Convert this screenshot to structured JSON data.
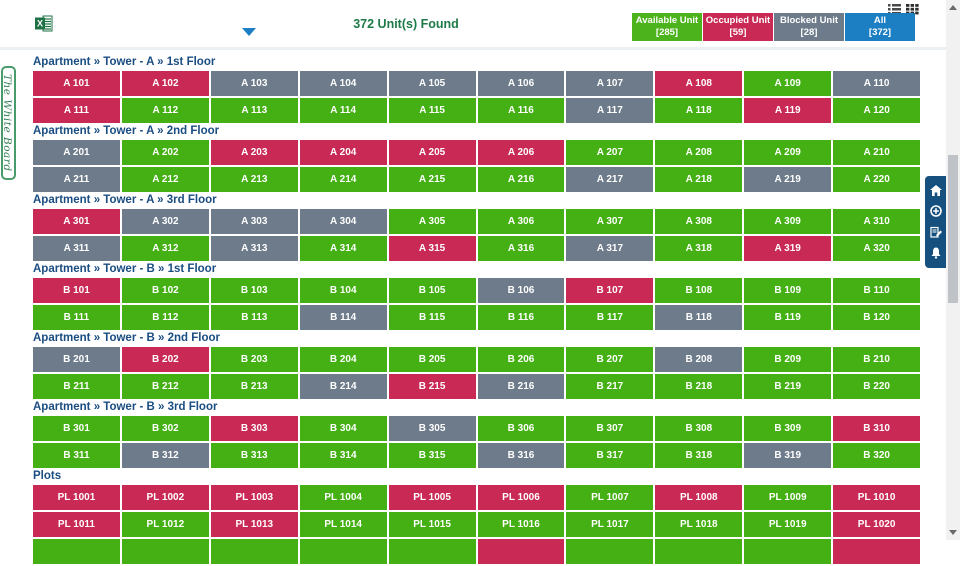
{
  "header": {
    "title": "372 Unit(s) Found",
    "filters": [
      {
        "id": "available",
        "label": "Available Unit",
        "count": "[285]",
        "color": "#4cb31c"
      },
      {
        "id": "occupied",
        "label": "Occupied Unit",
        "count": "[59]",
        "color": "#c92a55"
      },
      {
        "id": "blocked",
        "label": "Blocked Unit",
        "count": "[28]",
        "color": "#6d7b8b"
      },
      {
        "id": "all",
        "label": "All",
        "count": "[372]",
        "color": "#1c7fc3",
        "selected": true
      }
    ]
  },
  "side_tab": {
    "label": "The White Board"
  },
  "toolbar": {
    "icons": [
      "home-icon",
      "add-circle-icon",
      "edit-notes-icon",
      "bell-icon"
    ]
  },
  "status_colors": {
    "available": "#44b013",
    "occupied": "#c92a55",
    "blocked": "#6d7b8b"
  },
  "sections": [
    {
      "title": "Apartment » Tower - A » 1st Floor",
      "rows": [
        [
          {
            "label": "A 101",
            "status": "occupied"
          },
          {
            "label": "A 102",
            "status": "occupied"
          },
          {
            "label": "A 103",
            "status": "blocked"
          },
          {
            "label": "A 104",
            "status": "blocked"
          },
          {
            "label": "A 105",
            "status": "blocked"
          },
          {
            "label": "A 106",
            "status": "blocked"
          },
          {
            "label": "A 107",
            "status": "blocked"
          },
          {
            "label": "A 108",
            "status": "occupied"
          },
          {
            "label": "A 109",
            "status": "available"
          },
          {
            "label": "A 110",
            "status": "blocked"
          }
        ],
        [
          {
            "label": "A 111",
            "status": "occupied"
          },
          {
            "label": "A 112",
            "status": "available"
          },
          {
            "label": "A 113",
            "status": "available"
          },
          {
            "label": "A 114",
            "status": "available"
          },
          {
            "label": "A 115",
            "status": "available"
          },
          {
            "label": "A 116",
            "status": "available"
          },
          {
            "label": "A 117",
            "status": "blocked"
          },
          {
            "label": "A 118",
            "status": "available"
          },
          {
            "label": "A 119",
            "status": "occupied"
          },
          {
            "label": "A 120",
            "status": "available"
          }
        ]
      ]
    },
    {
      "title": "Apartment » Tower - A » 2nd Floor",
      "rows": [
        [
          {
            "label": "A 201",
            "status": "blocked"
          },
          {
            "label": "A 202",
            "status": "available"
          },
          {
            "label": "A 203",
            "status": "occupied"
          },
          {
            "label": "A 204",
            "status": "occupied"
          },
          {
            "label": "A 205",
            "status": "occupied"
          },
          {
            "label": "A 206",
            "status": "occupied"
          },
          {
            "label": "A 207",
            "status": "available"
          },
          {
            "label": "A 208",
            "status": "available"
          },
          {
            "label": "A 209",
            "status": "available"
          },
          {
            "label": "A 210",
            "status": "available"
          }
        ],
        [
          {
            "label": "A 211",
            "status": "blocked"
          },
          {
            "label": "A 212",
            "status": "available"
          },
          {
            "label": "A 213",
            "status": "available"
          },
          {
            "label": "A 214",
            "status": "available"
          },
          {
            "label": "A 215",
            "status": "available"
          },
          {
            "label": "A 216",
            "status": "available"
          },
          {
            "label": "A 217",
            "status": "blocked"
          },
          {
            "label": "A 218",
            "status": "available"
          },
          {
            "label": "A 219",
            "status": "blocked"
          },
          {
            "label": "A 220",
            "status": "available"
          }
        ]
      ]
    },
    {
      "title": "Apartment » Tower - A » 3rd Floor",
      "rows": [
        [
          {
            "label": "A 301",
            "status": "occupied"
          },
          {
            "label": "A 302",
            "status": "blocked"
          },
          {
            "label": "A 303",
            "status": "blocked"
          },
          {
            "label": "A 304",
            "status": "blocked"
          },
          {
            "label": "A 305",
            "status": "available"
          },
          {
            "label": "A 306",
            "status": "available"
          },
          {
            "label": "A 307",
            "status": "available"
          },
          {
            "label": "A 308",
            "status": "available"
          },
          {
            "label": "A 309",
            "status": "available"
          },
          {
            "label": "A 310",
            "status": "available"
          }
        ],
        [
          {
            "label": "A 311",
            "status": "blocked"
          },
          {
            "label": "A 312",
            "status": "available"
          },
          {
            "label": "A 313",
            "status": "blocked"
          },
          {
            "label": "A 314",
            "status": "available"
          },
          {
            "label": "A 315",
            "status": "occupied"
          },
          {
            "label": "A 316",
            "status": "available"
          },
          {
            "label": "A 317",
            "status": "blocked"
          },
          {
            "label": "A 318",
            "status": "available"
          },
          {
            "label": "A 319",
            "status": "occupied"
          },
          {
            "label": "A 320",
            "status": "available"
          }
        ]
      ]
    },
    {
      "title": "Apartment » Tower - B » 1st Floor",
      "rows": [
        [
          {
            "label": "B 101",
            "status": "occupied"
          },
          {
            "label": "B 102",
            "status": "available"
          },
          {
            "label": "B 103",
            "status": "available"
          },
          {
            "label": "B 104",
            "status": "available"
          },
          {
            "label": "B 105",
            "status": "available"
          },
          {
            "label": "B 106",
            "status": "blocked"
          },
          {
            "label": "B 107",
            "status": "occupied"
          },
          {
            "label": "B 108",
            "status": "available"
          },
          {
            "label": "B 109",
            "status": "available"
          },
          {
            "label": "B 110",
            "status": "available"
          }
        ],
        [
          {
            "label": "B 111",
            "status": "available"
          },
          {
            "label": "B 112",
            "status": "available"
          },
          {
            "label": "B 113",
            "status": "available"
          },
          {
            "label": "B 114",
            "status": "blocked"
          },
          {
            "label": "B 115",
            "status": "available"
          },
          {
            "label": "B 116",
            "status": "available"
          },
          {
            "label": "B 117",
            "status": "available"
          },
          {
            "label": "B 118",
            "status": "blocked"
          },
          {
            "label": "B 119",
            "status": "available"
          },
          {
            "label": "B 120",
            "status": "available"
          }
        ]
      ]
    },
    {
      "title": "Apartment » Tower - B » 2nd Floor",
      "rows": [
        [
          {
            "label": "B 201",
            "status": "blocked"
          },
          {
            "label": "B 202",
            "status": "occupied"
          },
          {
            "label": "B 203",
            "status": "available"
          },
          {
            "label": "B 204",
            "status": "available"
          },
          {
            "label": "B 205",
            "status": "available"
          },
          {
            "label": "B 206",
            "status": "available"
          },
          {
            "label": "B 207",
            "status": "available"
          },
          {
            "label": "B 208",
            "status": "blocked"
          },
          {
            "label": "B 209",
            "status": "available"
          },
          {
            "label": "B 210",
            "status": "available"
          }
        ],
        [
          {
            "label": "B 211",
            "status": "available"
          },
          {
            "label": "B 212",
            "status": "available"
          },
          {
            "label": "B 213",
            "status": "available"
          },
          {
            "label": "B 214",
            "status": "blocked"
          },
          {
            "label": "B 215",
            "status": "occupied"
          },
          {
            "label": "B 216",
            "status": "blocked"
          },
          {
            "label": "B 217",
            "status": "available"
          },
          {
            "label": "B 218",
            "status": "available"
          },
          {
            "label": "B 219",
            "status": "available"
          },
          {
            "label": "B 220",
            "status": "available"
          }
        ]
      ]
    },
    {
      "title": "Apartment » Tower - B » 3rd Floor",
      "rows": [
        [
          {
            "label": "B 301",
            "status": "available"
          },
          {
            "label": "B 302",
            "status": "available"
          },
          {
            "label": "B 303",
            "status": "occupied"
          },
          {
            "label": "B 304",
            "status": "available"
          },
          {
            "label": "B 305",
            "status": "blocked"
          },
          {
            "label": "B 306",
            "status": "available"
          },
          {
            "label": "B 307",
            "status": "available"
          },
          {
            "label": "B 308",
            "status": "available"
          },
          {
            "label": "B 309",
            "status": "available"
          },
          {
            "label": "B 310",
            "status": "occupied"
          }
        ],
        [
          {
            "label": "B 311",
            "status": "available"
          },
          {
            "label": "B 312",
            "status": "blocked"
          },
          {
            "label": "B 313",
            "status": "available"
          },
          {
            "label": "B 314",
            "status": "available"
          },
          {
            "label": "B 315",
            "status": "available"
          },
          {
            "label": "B 316",
            "status": "blocked"
          },
          {
            "label": "B 317",
            "status": "available"
          },
          {
            "label": "B 318",
            "status": "available"
          },
          {
            "label": "B 319",
            "status": "blocked"
          },
          {
            "label": "B 320",
            "status": "available"
          }
        ]
      ]
    },
    {
      "title": "Plots",
      "rows": [
        [
          {
            "label": "PL 1001",
            "status": "occupied"
          },
          {
            "label": "PL 1002",
            "status": "occupied"
          },
          {
            "label": "PL 1003",
            "status": "occupied"
          },
          {
            "label": "PL 1004",
            "status": "available"
          },
          {
            "label": "PL 1005",
            "status": "occupied"
          },
          {
            "label": "PL 1006",
            "status": "occupied"
          },
          {
            "label": "PL 1007",
            "status": "available"
          },
          {
            "label": "PL 1008",
            "status": "occupied"
          },
          {
            "label": "PL 1009",
            "status": "available"
          },
          {
            "label": "PL 1010",
            "status": "occupied"
          }
        ],
        [
          {
            "label": "PL 1011",
            "status": "occupied"
          },
          {
            "label": "PL 1012",
            "status": "available"
          },
          {
            "label": "PL 1013",
            "status": "occupied"
          },
          {
            "label": "PL 1014",
            "status": "available"
          },
          {
            "label": "PL 1015",
            "status": "available"
          },
          {
            "label": "PL 1016",
            "status": "available"
          },
          {
            "label": "PL 1017",
            "status": "available"
          },
          {
            "label": "PL 1018",
            "status": "available"
          },
          {
            "label": "PL 1019",
            "status": "available"
          },
          {
            "label": "PL 1020",
            "status": "occupied"
          }
        ],
        [
          {
            "label": "",
            "status": "available"
          },
          {
            "label": "",
            "status": "available"
          },
          {
            "label": "",
            "status": "available"
          },
          {
            "label": "",
            "status": "available"
          },
          {
            "label": "",
            "status": "available"
          },
          {
            "label": "",
            "status": "occupied"
          },
          {
            "label": "",
            "status": "available"
          },
          {
            "label": "",
            "status": "available"
          },
          {
            "label": "",
            "status": "available"
          },
          {
            "label": "",
            "status": "occupied"
          }
        ]
      ]
    }
  ]
}
